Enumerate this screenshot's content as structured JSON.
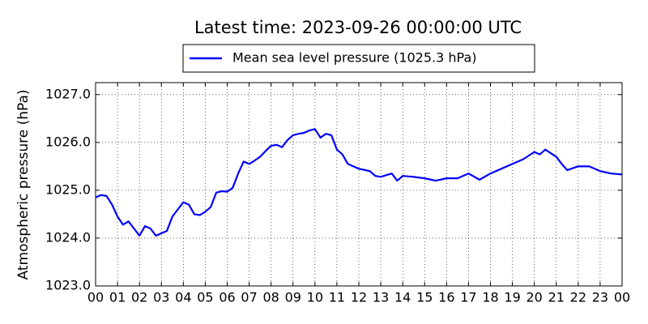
{
  "chart_data": {
    "type": "line",
    "title": "Latest time: 2023-09-26 00:00:00 UTC",
    "ylabel": "Atmospheric pressure (hPa)",
    "grid": true,
    "legend": "upper center",
    "xlim": [
      0,
      24
    ],
    "xticks": [
      {
        "value": 0,
        "label": "00"
      },
      {
        "value": 1,
        "label": "01"
      },
      {
        "value": 2,
        "label": "02"
      },
      {
        "value": 3,
        "label": "03"
      },
      {
        "value": 4,
        "label": "04"
      },
      {
        "value": 5,
        "label": "05"
      },
      {
        "value": 6,
        "label": "06"
      },
      {
        "value": 7,
        "label": "07"
      },
      {
        "value": 8,
        "label": "08"
      },
      {
        "value": 9,
        "label": "09"
      },
      {
        "value": 10,
        "label": "10"
      },
      {
        "value": 11,
        "label": "11"
      },
      {
        "value": 12,
        "label": "12"
      },
      {
        "value": 13,
        "label": "13"
      },
      {
        "value": 14,
        "label": "14"
      },
      {
        "value": 15,
        "label": "15"
      },
      {
        "value": 16,
        "label": "16"
      },
      {
        "value": 17,
        "label": "17"
      },
      {
        "value": 18,
        "label": "18"
      },
      {
        "value": 19,
        "label": "19"
      },
      {
        "value": 20,
        "label": "20"
      },
      {
        "value": 21,
        "label": "21"
      },
      {
        "value": 22,
        "label": "22"
      },
      {
        "value": 23,
        "label": "23"
      },
      {
        "value": 24,
        "label": "00"
      }
    ],
    "ylim": [
      1023,
      1027.25
    ],
    "yticks": [
      {
        "value": 1023,
        "label": "1023.0"
      },
      {
        "value": 1024,
        "label": "1024.0"
      },
      {
        "value": 1025,
        "label": "1025.0"
      },
      {
        "value": 1026,
        "label": "1026.0"
      },
      {
        "value": 1027,
        "label": "1027.0"
      }
    ],
    "x": [
      0,
      0.25,
      0.5,
      0.75,
      1,
      1.25,
      1.5,
      1.75,
      2,
      2.25,
      2.5,
      2.75,
      3,
      3.25,
      3.5,
      3.75,
      4,
      4.25,
      4.5,
      4.75,
      5,
      5.25,
      5.5,
      5.75,
      6,
      6.25,
      6.5,
      6.75,
      7,
      7.25,
      7.5,
      7.75,
      8,
      8.25,
      8.5,
      8.75,
      9,
      9.25,
      9.5,
      9.75,
      10,
      10.25,
      10.5,
      10.75,
      11,
      11.25,
      11.5,
      11.75,
      12,
      12.5,
      12.75,
      13,
      13.5,
      13.75,
      14,
      14.5,
      15,
      15.5,
      16,
      16.5,
      17,
      17.5,
      18,
      18.5,
      19,
      19.5,
      20,
      20.25,
      20.5,
      21,
      21.25,
      21.5,
      22,
      22.5,
      23,
      23.5,
      24
    ],
    "series": [
      {
        "name": "Mean sea level pressure (1025.3 hPa)",
        "color": "#0000ff",
        "values": [
          1024.85,
          1024.9,
          1024.88,
          1024.7,
          1024.45,
          1024.28,
          1024.35,
          1024.2,
          1024.05,
          1024.25,
          1024.2,
          1024.05,
          1024.1,
          1024.15,
          1024.45,
          1024.6,
          1024.75,
          1024.7,
          1024.5,
          1024.48,
          1024.55,
          1024.65,
          1024.95,
          1024.98,
          1024.97,
          1025.05,
          1025.35,
          1025.6,
          1025.55,
          1025.62,
          1025.7,
          1025.82,
          1025.93,
          1025.95,
          1025.9,
          1026.05,
          1026.15,
          1026.18,
          1026.2,
          1026.25,
          1026.28,
          1026.1,
          1026.18,
          1026.15,
          1025.85,
          1025.75,
          1025.55,
          1025.5,
          1025.45,
          1025.4,
          1025.3,
          1025.28,
          1025.35,
          1025.2,
          1025.3,
          1025.28,
          1025.25,
          1025.2,
          1025.25,
          1025.25,
          1025.35,
          1025.22,
          1025.35,
          1025.45,
          1025.55,
          1025.65,
          1025.8,
          1025.75,
          1025.85,
          1025.7,
          1025.55,
          1025.42,
          1025.5,
          1025.5,
          1025.4,
          1025.35,
          1025.33
        ]
      }
    ]
  }
}
